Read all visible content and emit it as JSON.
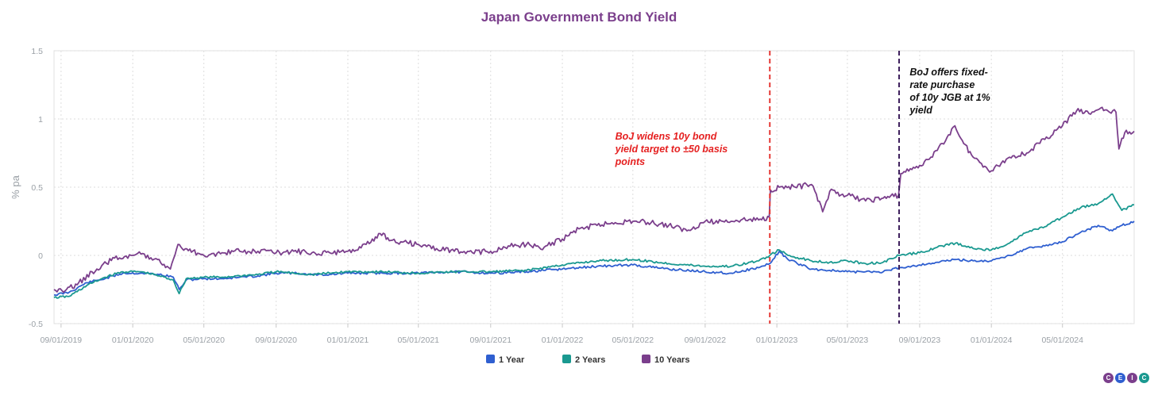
{
  "chart_data": {
    "type": "line",
    "title": "Japan Government Bond Yield",
    "ylabel": "% pa",
    "xlabel": "",
    "ylim": [
      -0.5,
      1.5
    ],
    "yticks": [
      "-0.5",
      "0",
      "0.5",
      "1",
      "1.5"
    ],
    "xlim": [
      "2019-08-20",
      "2024-08-31"
    ],
    "xticks": [
      "09/01/2019",
      "01/01/2020",
      "05/01/2020",
      "09/01/2020",
      "01/01/2021",
      "05/01/2021",
      "09/01/2021",
      "01/01/2022",
      "05/01/2022",
      "09/01/2022",
      "01/01/2023",
      "05/01/2023",
      "09/01/2023",
      "01/01/2024",
      "05/01/2024"
    ],
    "grid": true,
    "legend_position": "bottom-center",
    "series": [
      {
        "name": "1 Year",
        "color": "#2f5fd0",
        "points": [
          [
            "2019-08-20",
            -0.29
          ],
          [
            "2019-09-15",
            -0.27
          ],
          [
            "2019-10-15",
            -0.2
          ],
          [
            "2019-11-15",
            -0.17
          ],
          [
            "2019-12-15",
            -0.13
          ],
          [
            "2020-01-15",
            -0.13
          ],
          [
            "2020-02-15",
            -0.14
          ],
          [
            "2020-03-10",
            -0.16
          ],
          [
            "2020-03-20",
            -0.25
          ],
          [
            "2020-04-01",
            -0.18
          ],
          [
            "2020-05-01",
            -0.17
          ],
          [
            "2020-06-01",
            -0.17
          ],
          [
            "2020-07-01",
            -0.16
          ],
          [
            "2020-08-01",
            -0.15
          ],
          [
            "2020-09-01",
            -0.13
          ],
          [
            "2020-10-01",
            -0.13
          ],
          [
            "2020-11-01",
            -0.14
          ],
          [
            "2020-12-01",
            -0.14
          ],
          [
            "2021-01-01",
            -0.13
          ],
          [
            "2021-03-01",
            -0.13
          ],
          [
            "2021-05-01",
            -0.13
          ],
          [
            "2021-07-01",
            -0.12
          ],
          [
            "2021-09-01",
            -0.13
          ],
          [
            "2021-11-01",
            -0.12
          ],
          [
            "2022-01-01",
            -0.1
          ],
          [
            "2022-03-01",
            -0.08
          ],
          [
            "2022-05-01",
            -0.07
          ],
          [
            "2022-07-01",
            -0.1
          ],
          [
            "2022-09-01",
            -0.12
          ],
          [
            "2022-10-15",
            -0.13
          ],
          [
            "2022-12-01",
            -0.09
          ],
          [
            "2022-12-20",
            -0.06
          ],
          [
            "2023-01-05",
            0.03
          ],
          [
            "2023-01-20",
            -0.03
          ],
          [
            "2023-03-01",
            -0.1
          ],
          [
            "2023-04-01",
            -0.11
          ],
          [
            "2023-05-01",
            -0.12
          ],
          [
            "2023-06-01",
            -0.12
          ],
          [
            "2023-07-01",
            -0.12
          ],
          [
            "2023-07-28",
            -0.09
          ],
          [
            "2023-09-01",
            -0.07
          ],
          [
            "2023-10-01",
            -0.05
          ],
          [
            "2023-11-01",
            -0.03
          ],
          [
            "2023-12-01",
            -0.04
          ],
          [
            "2024-01-01",
            -0.04
          ],
          [
            "2024-02-01",
            0.0
          ],
          [
            "2024-03-01",
            0.05
          ],
          [
            "2024-04-01",
            0.07
          ],
          [
            "2024-05-01",
            0.1
          ],
          [
            "2024-06-01",
            0.17
          ],
          [
            "2024-07-01",
            0.22
          ],
          [
            "2024-07-25",
            0.18
          ],
          [
            "2024-08-10",
            0.22
          ],
          [
            "2024-08-31",
            0.25
          ]
        ]
      },
      {
        "name": "2 Years",
        "color": "#1a9990",
        "points": [
          [
            "2019-08-20",
            -0.31
          ],
          [
            "2019-09-15",
            -0.3
          ],
          [
            "2019-10-15",
            -0.22
          ],
          [
            "2019-11-15",
            -0.16
          ],
          [
            "2019-12-15",
            -0.12
          ],
          [
            "2020-01-15",
            -0.12
          ],
          [
            "2020-02-15",
            -0.15
          ],
          [
            "2020-03-10",
            -0.18
          ],
          [
            "2020-03-20",
            -0.28
          ],
          [
            "2020-04-01",
            -0.17
          ],
          [
            "2020-05-01",
            -0.16
          ],
          [
            "2020-06-01",
            -0.16
          ],
          [
            "2020-07-01",
            -0.15
          ],
          [
            "2020-08-01",
            -0.14
          ],
          [
            "2020-09-01",
            -0.12
          ],
          [
            "2020-10-01",
            -0.13
          ],
          [
            "2020-11-01",
            -0.14
          ],
          [
            "2020-12-01",
            -0.13
          ],
          [
            "2021-01-01",
            -0.12
          ],
          [
            "2021-03-01",
            -0.12
          ],
          [
            "2021-05-01",
            -0.13
          ],
          [
            "2021-07-01",
            -0.12
          ],
          [
            "2021-09-01",
            -0.12
          ],
          [
            "2021-11-01",
            -0.11
          ],
          [
            "2022-01-01",
            -0.07
          ],
          [
            "2022-03-01",
            -0.04
          ],
          [
            "2022-05-01",
            -0.03
          ],
          [
            "2022-07-01",
            -0.06
          ],
          [
            "2022-09-01",
            -0.08
          ],
          [
            "2022-10-15",
            -0.08
          ],
          [
            "2022-12-01",
            -0.04
          ],
          [
            "2022-12-20",
            0.0
          ],
          [
            "2023-01-05",
            0.04
          ],
          [
            "2023-01-20",
            0.0
          ],
          [
            "2023-03-01",
            -0.04
          ],
          [
            "2023-04-01",
            -0.05
          ],
          [
            "2023-05-01",
            -0.04
          ],
          [
            "2023-06-01",
            -0.06
          ],
          [
            "2023-07-01",
            -0.05
          ],
          [
            "2023-07-28",
            0.0
          ],
          [
            "2023-09-01",
            0.02
          ],
          [
            "2023-10-01",
            0.06
          ],
          [
            "2023-11-01",
            0.09
          ],
          [
            "2023-12-01",
            0.05
          ],
          [
            "2024-01-01",
            0.04
          ],
          [
            "2024-02-01",
            0.09
          ],
          [
            "2024-03-01",
            0.17
          ],
          [
            "2024-04-01",
            0.21
          ],
          [
            "2024-05-01",
            0.28
          ],
          [
            "2024-06-01",
            0.35
          ],
          [
            "2024-07-01",
            0.38
          ],
          [
            "2024-07-25",
            0.45
          ],
          [
            "2024-08-10",
            0.33
          ],
          [
            "2024-08-31",
            0.37
          ]
        ]
      },
      {
        "name": "10 Years",
        "color": "#7b3f8c",
        "points": [
          [
            "2019-08-20",
            -0.25
          ],
          [
            "2019-09-05",
            -0.27
          ],
          [
            "2019-10-01",
            -0.2
          ],
          [
            "2019-11-01",
            -0.1
          ],
          [
            "2019-12-01",
            -0.02
          ],
          [
            "2020-01-01",
            0.0
          ],
          [
            "2020-01-15",
            0.01
          ],
          [
            "2020-02-15",
            -0.03
          ],
          [
            "2020-03-05",
            -0.1
          ],
          [
            "2020-03-18",
            0.08
          ],
          [
            "2020-03-25",
            0.05
          ],
          [
            "2020-05-01",
            0.0
          ],
          [
            "2020-06-01",
            0.02
          ],
          [
            "2020-07-01",
            0.03
          ],
          [
            "2020-08-01",
            0.03
          ],
          [
            "2020-09-01",
            0.02
          ],
          [
            "2020-10-01",
            0.03
          ],
          [
            "2020-11-01",
            0.02
          ],
          [
            "2020-12-01",
            0.02
          ],
          [
            "2021-01-01",
            0.03
          ],
          [
            "2021-02-01",
            0.08
          ],
          [
            "2021-02-25",
            0.16
          ],
          [
            "2021-03-15",
            0.11
          ],
          [
            "2021-04-01",
            0.1
          ],
          [
            "2021-05-01",
            0.08
          ],
          [
            "2021-06-01",
            0.05
          ],
          [
            "2021-07-01",
            0.03
          ],
          [
            "2021-08-01",
            0.02
          ],
          [
            "2021-09-01",
            0.03
          ],
          [
            "2021-10-01",
            0.07
          ],
          [
            "2021-11-01",
            0.08
          ],
          [
            "2021-12-01",
            0.06
          ],
          [
            "2022-01-01",
            0.12
          ],
          [
            "2022-02-01",
            0.2
          ],
          [
            "2022-03-01",
            0.22
          ],
          [
            "2022-04-01",
            0.24
          ],
          [
            "2022-05-01",
            0.25
          ],
          [
            "2022-06-01",
            0.24
          ],
          [
            "2022-07-01",
            0.22
          ],
          [
            "2022-08-01",
            0.18
          ],
          [
            "2022-09-01",
            0.25
          ],
          [
            "2022-10-01",
            0.25
          ],
          [
            "2022-11-01",
            0.26
          ],
          [
            "2022-12-01",
            0.26
          ],
          [
            "2022-12-19",
            0.28
          ],
          [
            "2022-12-21",
            0.48
          ],
          [
            "2023-01-05",
            0.5
          ],
          [
            "2023-02-01",
            0.5
          ],
          [
            "2023-03-01",
            0.52
          ],
          [
            "2023-03-20",
            0.32
          ],
          [
            "2023-04-01",
            0.47
          ],
          [
            "2023-05-01",
            0.44
          ],
          [
            "2023-06-01",
            0.4
          ],
          [
            "2023-07-01",
            0.42
          ],
          [
            "2023-07-27",
            0.44
          ],
          [
            "2023-07-31",
            0.6
          ],
          [
            "2023-09-01",
            0.66
          ],
          [
            "2023-10-01",
            0.77
          ],
          [
            "2023-10-31",
            0.95
          ],
          [
            "2023-11-15",
            0.82
          ],
          [
            "2023-12-01",
            0.72
          ],
          [
            "2024-01-01",
            0.62
          ],
          [
            "2024-02-01",
            0.72
          ],
          [
            "2024-03-01",
            0.75
          ],
          [
            "2024-04-01",
            0.85
          ],
          [
            "2024-05-01",
            0.95
          ],
          [
            "2024-05-25",
            1.06
          ],
          [
            "2024-06-15",
            1.04
          ],
          [
            "2024-07-05",
            1.08
          ],
          [
            "2024-07-20",
            1.05
          ],
          [
            "2024-07-31",
            1.05
          ],
          [
            "2024-08-05",
            0.78
          ],
          [
            "2024-08-15",
            0.9
          ],
          [
            "2024-08-31",
            0.91
          ]
        ]
      }
    ],
    "vlines": [
      {
        "x": "2022-12-20",
        "color": "#e53935"
      },
      {
        "x": "2023-07-28",
        "color": "#3d1f5c"
      }
    ],
    "annotations": [
      {
        "text": [
          "BoJ widens 10y bond",
          "yield target to ±50 basis",
          "points"
        ],
        "color": "#e52020",
        "anchor_date": "2022-04-01",
        "anchor_y": 0.85
      },
      {
        "text": [
          "BoJ offers fixed-",
          "rate purchase",
          "of 10y JGB at 1%",
          "yield"
        ],
        "color": "#111111",
        "anchor_date": "2023-08-15",
        "anchor_y": 1.32
      }
    ]
  },
  "branding": {
    "logo_letters": [
      "C",
      "E",
      "I",
      "C"
    ],
    "logo_colors": [
      "#7b3f8c",
      "#2f5fd0",
      "#7b3f8c",
      "#1a9990"
    ]
  }
}
